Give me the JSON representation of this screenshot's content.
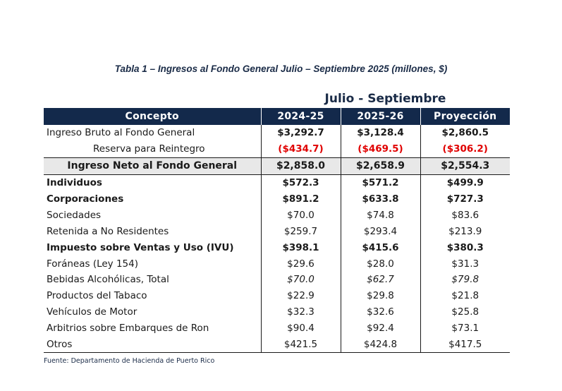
{
  "title": "Tabla 1 – Ingresos al Fondo General Julio – Septiembre 2025 (millones, $)",
  "group_header": "Julio - Septiembre",
  "columns": [
    "Concepto",
    "2024-25",
    "2025-26",
    "Proyección"
  ],
  "rows": [
    {
      "label": "Ingreso Bruto al Fondo General",
      "v1": "$3,292.7",
      "v2": "$3,128.4",
      "v3": "$2,860.5"
    },
    {
      "label": "Reserva para Reintegro",
      "v1": "($434.7)",
      "v2": "($469.5)",
      "v3": "($306.2)"
    },
    {
      "label": "Ingreso Neto al Fondo General",
      "v1": "$2,858.0",
      "v2": "$2,658.9",
      "v3": "$2,554.3"
    },
    {
      "label": "Individuos",
      "v1": "$572.3",
      "v2": "$571.2",
      "v3": "$499.9"
    },
    {
      "label": "Corporaciones",
      "v1": "$891.2",
      "v2": "$633.8",
      "v3": "$727.3"
    },
    {
      "label": "Sociedades",
      "v1": "$70.0",
      "v2": "$74.8",
      "v3": "$83.6"
    },
    {
      "label": "Retenida a No Residentes",
      "v1": "$259.7",
      "v2": "$293.4",
      "v3": "$213.9"
    },
    {
      "label": "Impuesto sobre Ventas y Uso (IVU)",
      "v1": "$398.1",
      "v2": "$415.6",
      "v3": "$380.3"
    },
    {
      "label": "Foráneas (Ley 154)",
      "v1": "$29.6",
      "v2": "$28.0",
      "v3": "$31.3"
    },
    {
      "label": "Bebidas Alcohólicas, Total",
      "v1": "$70.0",
      "v2": "$62.7",
      "v3": "$79.8"
    },
    {
      "label": "Productos del Tabaco",
      "v1": "$22.9",
      "v2": "$29.8",
      "v3": "$21.8"
    },
    {
      "label": "Vehículos de Motor",
      "v1": "$32.3",
      "v2": "$32.6",
      "v3": "$25.8"
    },
    {
      "label": "Arbitrios sobre Embarques de Ron",
      "v1": "$90.4",
      "v2": "$92.4",
      "v3": "$73.1"
    },
    {
      "label": "Otros",
      "v1": "$421.5",
      "v2": "$424.8",
      "v3": "$417.5"
    }
  ],
  "source": "Fuente: Departamento de Hacienda de Puerto Rico",
  "colors": {
    "header_bg": "#13294b",
    "negative": "#e00000",
    "net_row_bg": "#e8e8e8"
  }
}
